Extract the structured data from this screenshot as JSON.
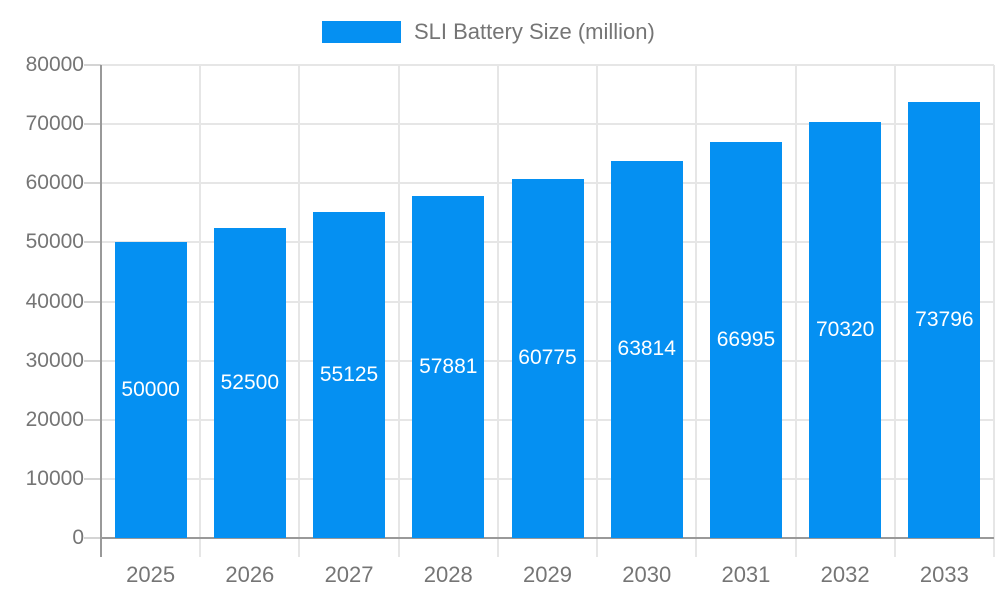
{
  "legend": {
    "label": "SLI Battery Size (million)"
  },
  "chart_data": {
    "type": "bar",
    "title": "SLI Battery Size (million)",
    "categories": [
      "2025",
      "2026",
      "2027",
      "2028",
      "2029",
      "2030",
      "2031",
      "2032",
      "2033"
    ],
    "values": [
      50000,
      52500,
      55125,
      57881,
      60775,
      63814,
      66995,
      70320,
      73796
    ],
    "value_labels": [
      "50000",
      "52500",
      "55125",
      "57881",
      "60775",
      "63814",
      "66995",
      "70320",
      "73796"
    ],
    "xlabel": "",
    "ylabel": "",
    "ylim": [
      0,
      80000
    ],
    "ytick_step": 10000,
    "y_tick_labels": [
      "0",
      "10000",
      "20000",
      "30000",
      "40000",
      "50000",
      "60000",
      "70000",
      "80000"
    ],
    "grid": true,
    "legend_position": "top-center",
    "colors": {
      "bar": "#0590f2",
      "value_label": "#ffffff",
      "grid": "#e6e6e6",
      "axis": "#999999",
      "tick": "#d4d4d4",
      "text": "#757575",
      "background": "#ffffff"
    }
  }
}
